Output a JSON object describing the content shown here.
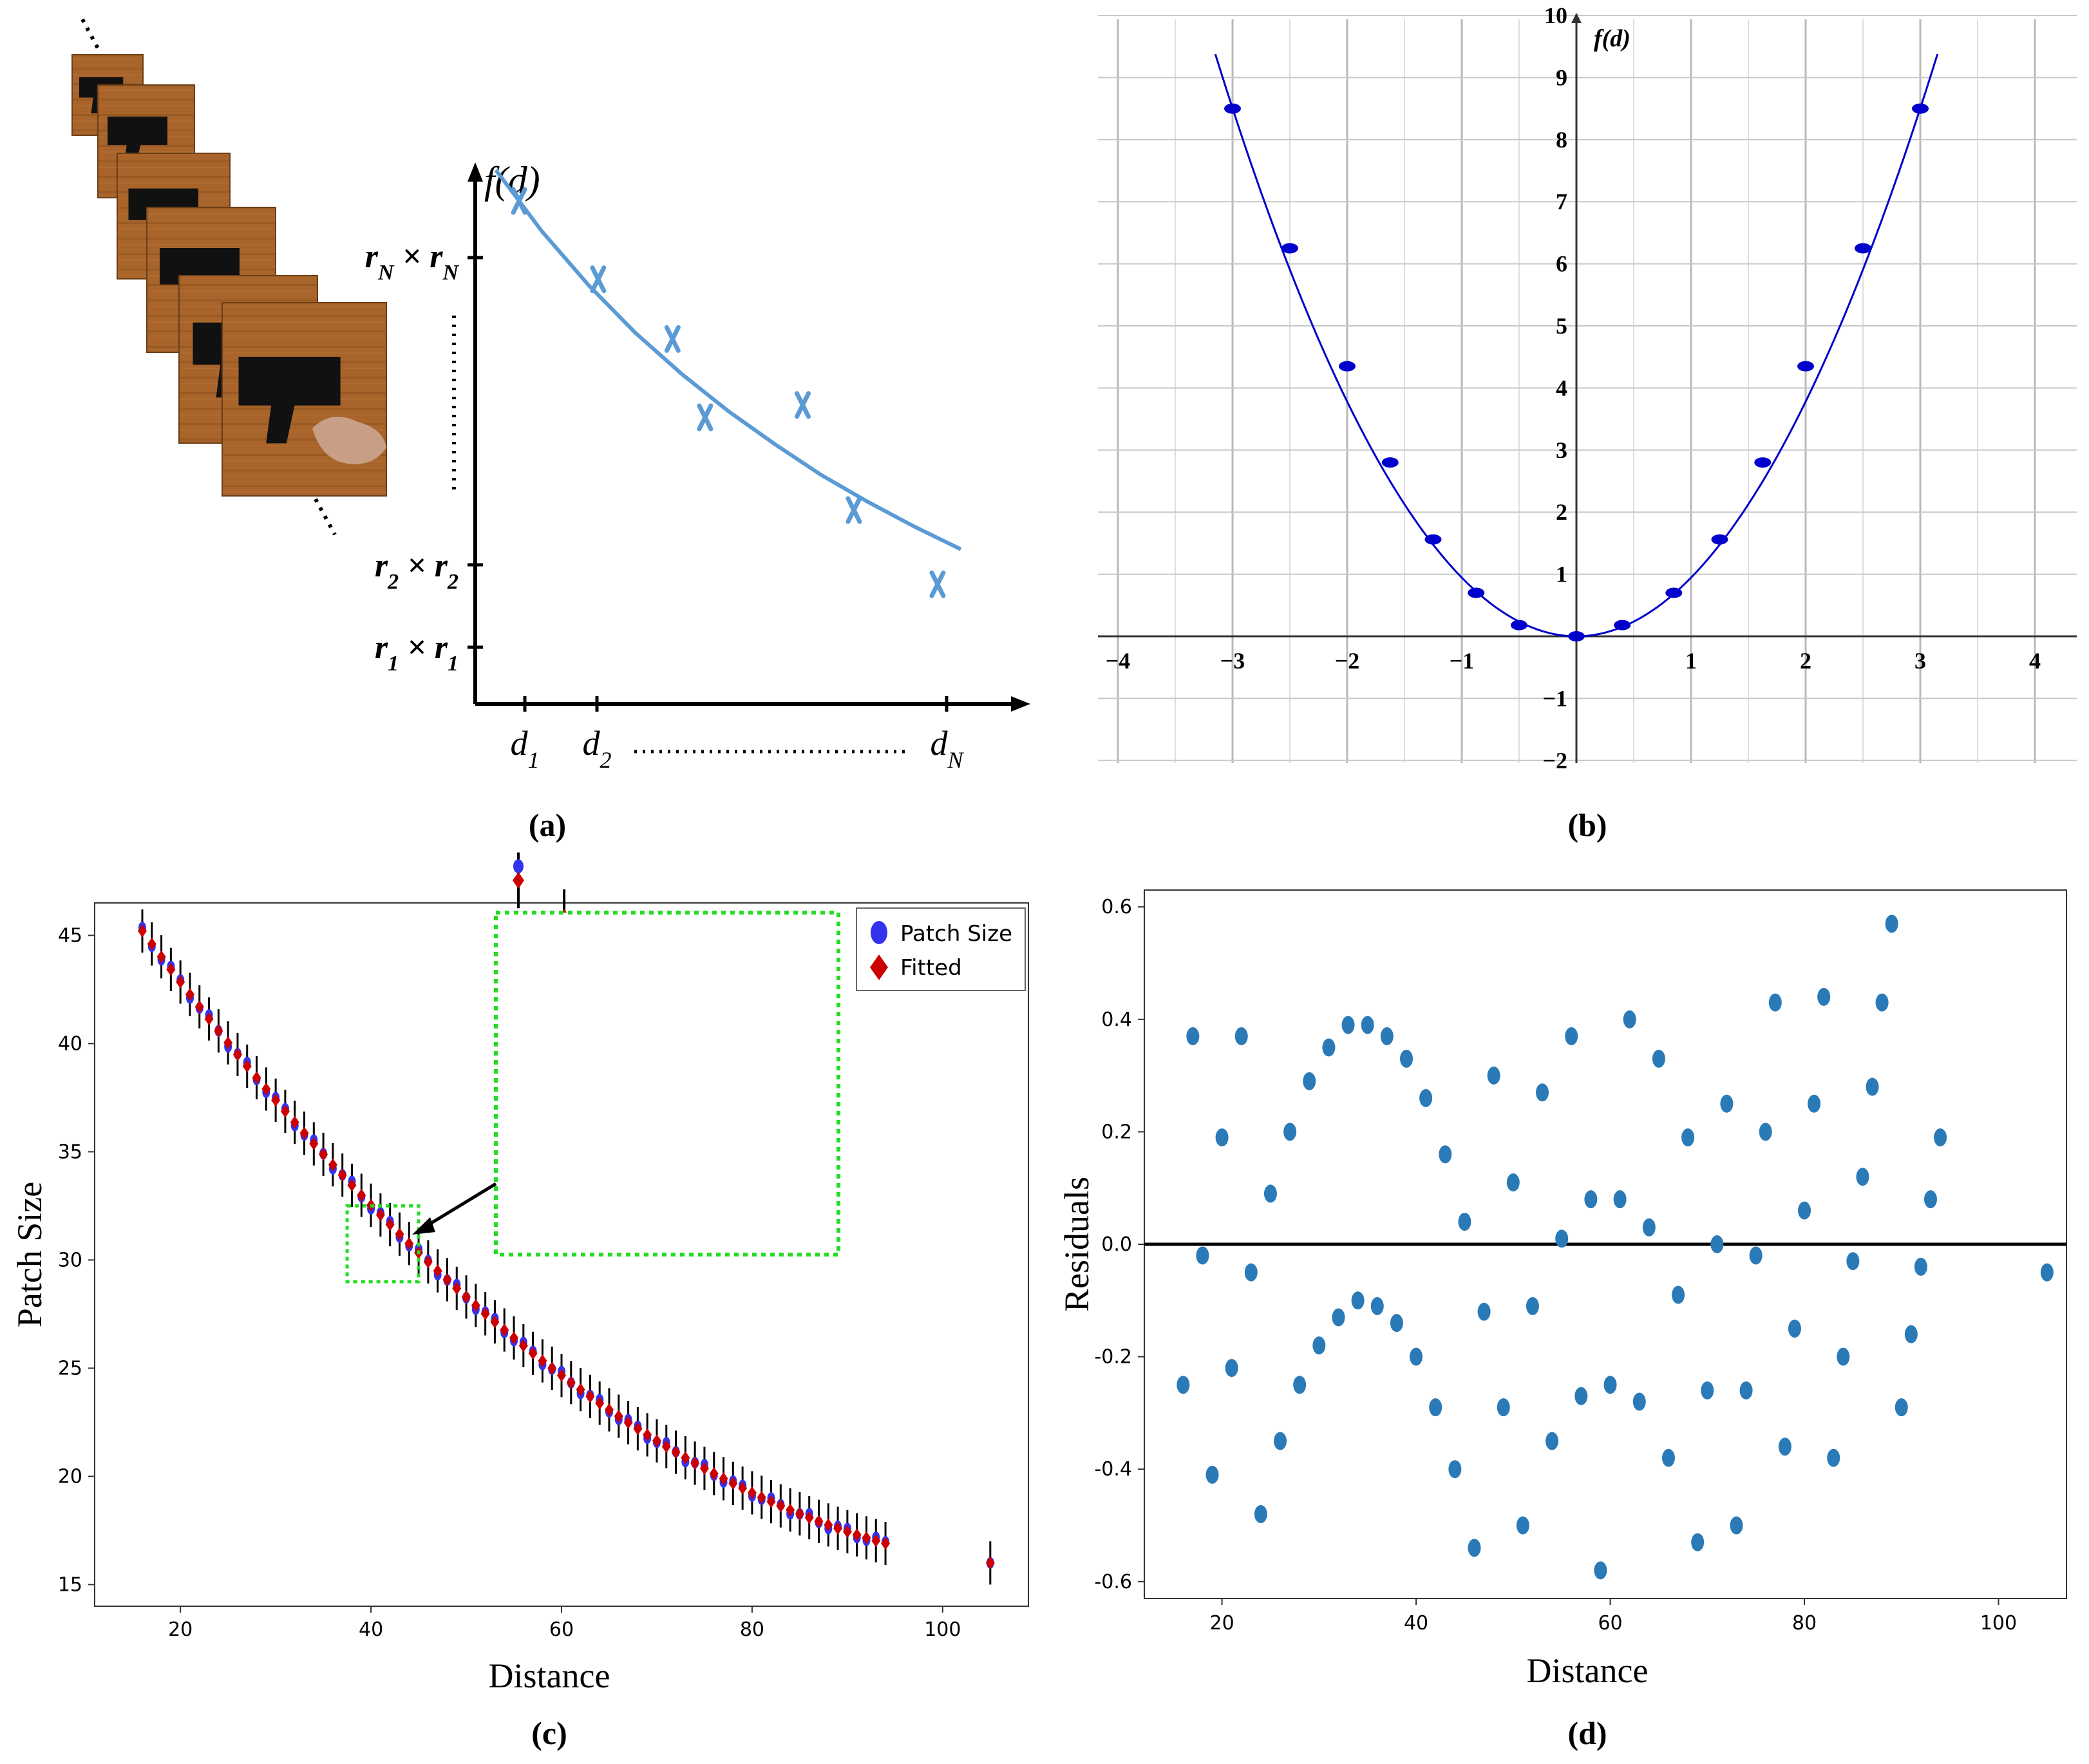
{
  "panels": {
    "a": {
      "caption": "(a)",
      "y_axis_label": "f(d)",
      "y_ticks": [
        {
          "base": "r",
          "sub": "N",
          "cross": "×"
        },
        {
          "base": "r",
          "sub": "2",
          "cross": "×"
        },
        {
          "base": "r",
          "sub": "1",
          "cross": "×"
        }
      ],
      "x_ticks": [
        {
          "base": "d",
          "sub": "1"
        },
        {
          "base": "d",
          "sub": "2"
        },
        {
          "base": "d",
          "sub": "N"
        }
      ],
      "curve_color": "#5b9bd5",
      "marker": "x",
      "photos": 6
    },
    "b": {
      "caption": "(b)",
      "y_axis_label": "f(d)",
      "x_ticks": [
        -4,
        -3,
        -2,
        -1,
        1,
        2,
        3,
        4
      ],
      "y_ticks": [
        -2,
        -1,
        1,
        2,
        3,
        4,
        5,
        6,
        7,
        8,
        9,
        10
      ],
      "color": "#0000cc"
    },
    "c": {
      "caption": "(c)",
      "xlabel": "Distance",
      "ylabel": "Patch Size",
      "x_ticks": [
        20,
        40,
        60,
        80,
        100
      ],
      "y_ticks": [
        15,
        20,
        25,
        30,
        35,
        40,
        45
      ],
      "legend": [
        "Patch Size",
        "Fitted"
      ],
      "colors": {
        "patch": "#3333ee",
        "fitted": "#cc0000",
        "zoom_box": "#22dd22"
      }
    },
    "d": {
      "caption": "(d)",
      "xlabel": "Distance",
      "ylabel": "Residuals",
      "x_ticks": [
        20,
        40,
        60,
        80,
        100
      ],
      "y_ticks": [
        "0.6",
        "0.4",
        "0.2",
        "0.0",
        "-0.2",
        "-0.4",
        "-0.6"
      ],
      "color": "#2a7ab8"
    }
  },
  "chart_data": [
    {
      "type": "scatter",
      "panel": "a",
      "title": "",
      "xlabel": "",
      "ylabel": "f(d)",
      "series": [
        {
          "type": "line",
          "x": [
            0.0,
            0.1,
            0.2,
            0.3,
            0.4,
            0.5,
            0.6,
            0.7,
            0.8,
            0.9,
            1.0
          ],
          "y": [
            2.2,
            1.9,
            1.64,
            1.41,
            1.21,
            1.03,
            0.87,
            0.72,
            0.59,
            0.47,
            0.36
          ]
        },
        {
          "type": "points",
          "x": [
            0.05,
            0.22,
            0.38,
            0.45,
            0.66,
            0.77,
            0.95
          ],
          "y": [
            2.05,
            1.67,
            1.38,
            1.0,
            1.06,
            0.55,
            0.19
          ]
        }
      ]
    },
    {
      "type": "line",
      "panel": "b",
      "title": "",
      "xlabel": "",
      "ylabel": "f(d)",
      "xlim": [
        -4.3,
        4.3
      ],
      "ylim": [
        -2,
        10
      ],
      "x": [
        -3,
        -2.5,
        -2,
        -1.625,
        -1.25,
        -0.875,
        -0.5,
        0,
        0.4,
        0.85,
        1.25,
        1.625,
        2,
        2.5,
        3
      ],
      "y": [
        8.5,
        6.25,
        4.35,
        2.8,
        1.56,
        0.7,
        0.18,
        0,
        0.18,
        0.7,
        1.56,
        2.8,
        4.35,
        6.25,
        8.5
      ]
    },
    {
      "type": "scatter",
      "panel": "c",
      "title": "",
      "xlabel": "Distance",
      "ylabel": "Patch Size",
      "xlim": [
        11,
        109
      ],
      "ylim": [
        14,
        46.5
      ],
      "fitted": {
        "model": "quadratic",
        "points": [
          [
            16,
            45.2
          ],
          [
            55,
            26.4
          ],
          [
            94,
            16.9
          ]
        ]
      },
      "x_start": 16,
      "x_end": 94,
      "x_step": 1,
      "outlier": {
        "x": 105,
        "y": 16.0
      },
      "error_bar": 1.0,
      "zoom_region": {
        "x": [
          37.5,
          45.0
        ],
        "y": [
          29.0,
          32.5
        ]
      }
    },
    {
      "type": "scatter",
      "panel": "d",
      "title": "",
      "xlabel": "Distance",
      "ylabel": "Residuals",
      "xlim": [
        12,
        107
      ],
      "ylim": [
        -0.63,
        0.63
      ],
      "hline": 0.0,
      "points": [
        [
          16,
          -0.25
        ],
        [
          17,
          0.37
        ],
        [
          18,
          -0.02
        ],
        [
          19,
          -0.41
        ],
        [
          20,
          0.19
        ],
        [
          21,
          -0.22
        ],
        [
          22,
          0.37
        ],
        [
          23,
          -0.05
        ],
        [
          24,
          -0.48
        ],
        [
          25,
          0.09
        ],
        [
          26,
          -0.35
        ],
        [
          27,
          0.2
        ],
        [
          28,
          -0.25
        ],
        [
          29,
          0.29
        ],
        [
          30,
          -0.18
        ],
        [
          31,
          0.35
        ],
        [
          32,
          -0.13
        ],
        [
          33,
          0.39
        ],
        [
          34,
          -0.1
        ],
        [
          35,
          0.39
        ],
        [
          36,
          -0.11
        ],
        [
          37,
          0.37
        ],
        [
          38,
          -0.14
        ],
        [
          39,
          0.33
        ],
        [
          40,
          -0.2
        ],
        [
          41,
          0.26
        ],
        [
          42,
          -0.29
        ],
        [
          43,
          0.16
        ],
        [
          44,
          -0.4
        ],
        [
          45,
          0.04
        ],
        [
          46,
          -0.54
        ],
        [
          47,
          -0.12
        ],
        [
          48,
          0.3
        ],
        [
          49,
          -0.29
        ],
        [
          50,
          0.11
        ],
        [
          51,
          -0.5
        ],
        [
          52,
          -0.11
        ],
        [
          53,
          0.27
        ],
        [
          54,
          -0.35
        ],
        [
          55,
          0.01
        ],
        [
          56,
          0.37
        ],
        [
          57,
          -0.27
        ],
        [
          58,
          0.08
        ],
        [
          59,
          -0.58
        ],
        [
          60,
          -0.25
        ],
        [
          61,
          0.08
        ],
        [
          62,
          0.4
        ],
        [
          63,
          -0.28
        ],
        [
          64,
          0.03
        ],
        [
          65,
          0.33
        ],
        [
          66,
          -0.38
        ],
        [
          67,
          -0.09
        ],
        [
          68,
          0.19
        ],
        [
          69,
          -0.53
        ],
        [
          70,
          -0.26
        ],
        [
          71,
          0.0
        ],
        [
          72,
          0.25
        ],
        [
          73,
          -0.5
        ],
        [
          74,
          -0.26
        ],
        [
          75,
          -0.02
        ],
        [
          76,
          0.2
        ],
        [
          77,
          0.43
        ],
        [
          78,
          -0.36
        ],
        [
          79,
          -0.15
        ],
        [
          80,
          0.06
        ],
        [
          81,
          0.25
        ],
        [
          82,
          0.44
        ],
        [
          83,
          -0.38
        ],
        [
          84,
          -0.2
        ],
        [
          85,
          -0.03
        ],
        [
          86,
          0.12
        ],
        [
          87,
          0.28
        ],
        [
          88,
          0.43
        ],
        [
          89,
          0.57
        ],
        [
          90,
          -0.29
        ],
        [
          91,
          -0.16
        ],
        [
          92,
          -0.04
        ],
        [
          93,
          0.08
        ],
        [
          94,
          0.19
        ],
        [
          105,
          -0.05
        ]
      ]
    }
  ]
}
